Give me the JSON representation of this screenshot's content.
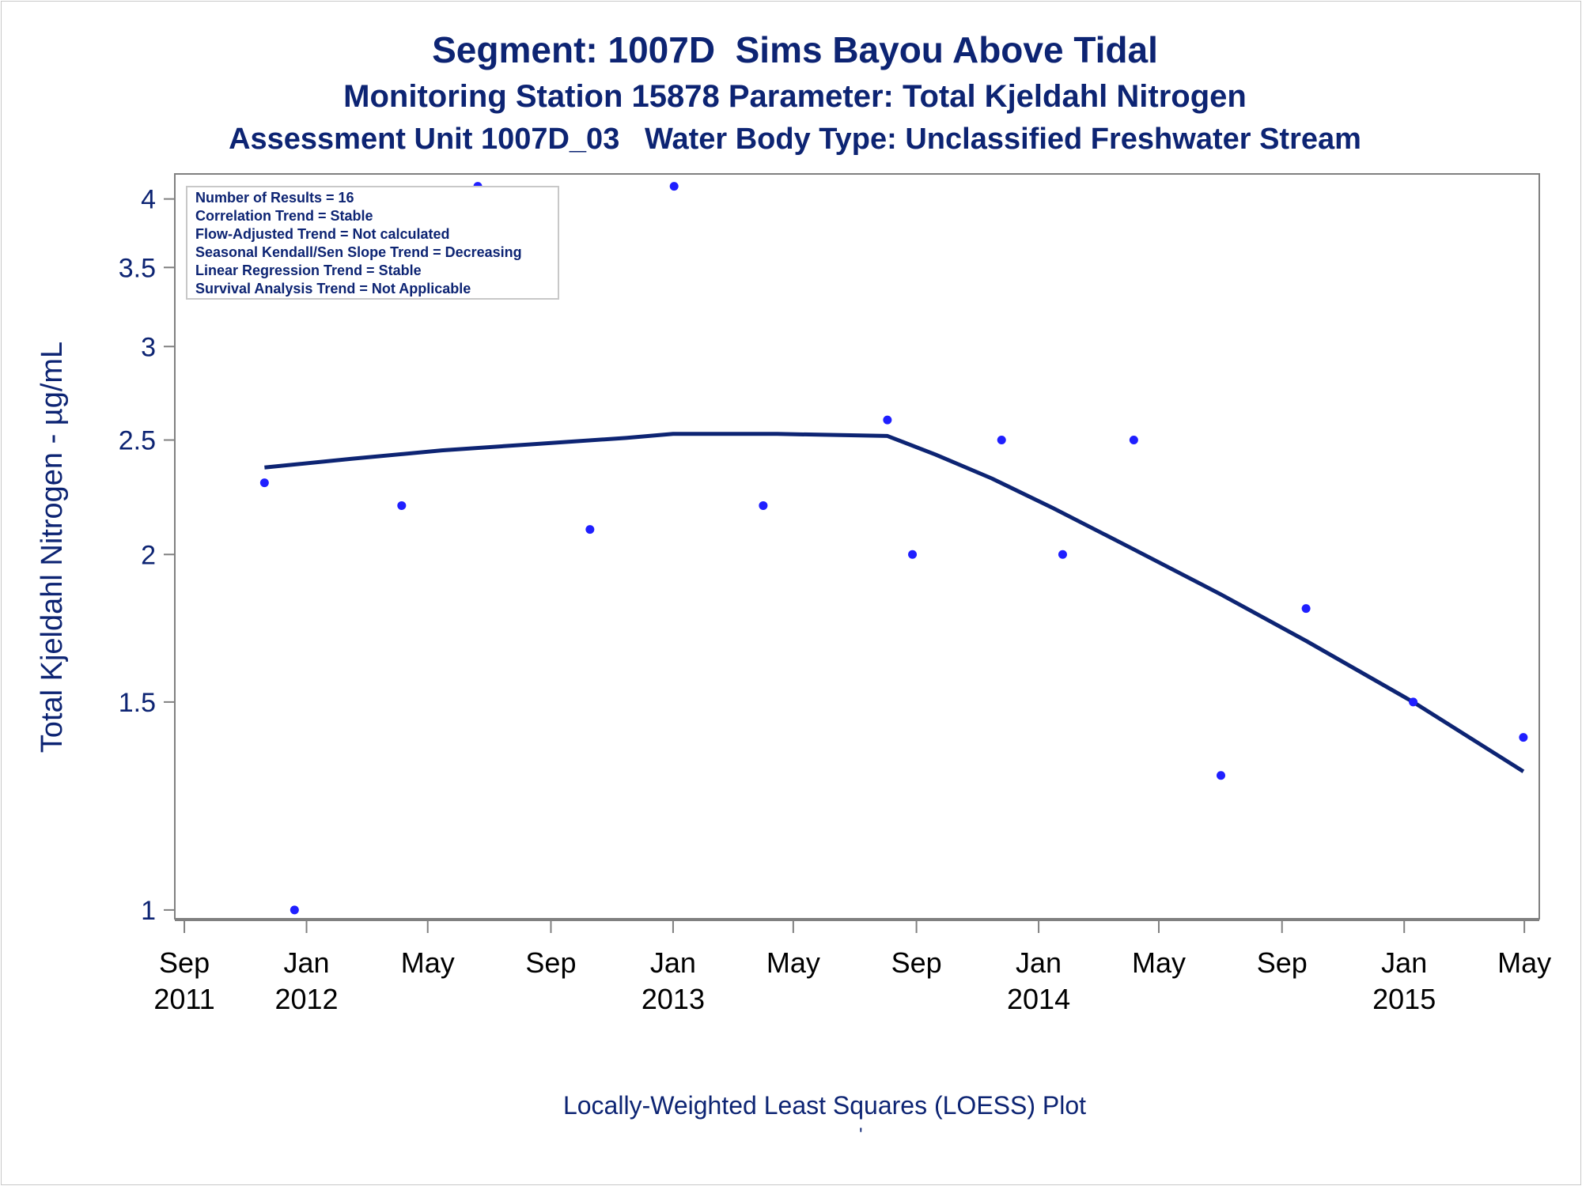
{
  "titles": {
    "line1": "Segment: 1007D  Sims Bayou Above Tidal",
    "line2": "Monitoring Station 15878 Parameter: Total Kjeldahl Nitrogen",
    "line3": "Assessment Unit 1007D_03   Water Body Type: Unclassified Freshwater Stream"
  },
  "footnote": "Locally-Weighted Least Squares (LOESS) Plot",
  "footmark": "'",
  "colors": {
    "text": "#0d2473",
    "points": "#1f1fff",
    "loess": "#0d2473",
    "axis": "#808080"
  },
  "chart_data": {
    "type": "scatter",
    "ylabel": "Total Kjeldahl Nitrogen -  µg/mL",
    "y_scale": "log",
    "ylim": [
      0.98,
      4.2
    ],
    "y_ticks": [
      1,
      1.5,
      2,
      2.5,
      3,
      3.5,
      4
    ],
    "y_tick_labels": [
      "1",
      "1.5",
      "2",
      "2.5",
      "3",
      "3.5",
      "4"
    ],
    "xlim": [
      "2011-08-28",
      "2015-05-08"
    ],
    "x_ticks": [
      {
        "date": "2011-09-01",
        "line1": "Sep",
        "line2": "2011"
      },
      {
        "date": "2012-01-01",
        "line1": "Jan",
        "line2": "2012"
      },
      {
        "date": "2012-05-01",
        "line1": "May",
        "line2": ""
      },
      {
        "date": "2012-09-01",
        "line1": "Sep",
        "line2": ""
      },
      {
        "date": "2013-01-01",
        "line1": "Jan",
        "line2": "2013"
      },
      {
        "date": "2013-05-01",
        "line1": "May",
        "line2": ""
      },
      {
        "date": "2013-09-01",
        "line1": "Sep",
        "line2": ""
      },
      {
        "date": "2014-01-01",
        "line1": "Jan",
        "line2": "2014"
      },
      {
        "date": "2014-05-01",
        "line1": "May",
        "line2": ""
      },
      {
        "date": "2014-09-01",
        "line1": "Sep",
        "line2": ""
      },
      {
        "date": "2015-01-01",
        "line1": "Jan",
        "line2": "2015"
      },
      {
        "date": "2015-05-01",
        "line1": "May",
        "line2": ""
      }
    ],
    "inset_lines": [
      "Number of Results = 16",
      "Correlation Trend = Stable",
      "Flow-Adjusted Trend = Not calculated",
      "Seasonal Kendall/Sen Slope Trend = Decreasing",
      "Linear Regression Trend = Stable",
      "Survival Analysis Trend = Not Applicable"
    ],
    "inset_position": "top-left",
    "grid": false,
    "series": [
      {
        "type": "scatter",
        "points": [
          {
            "x": "2011-11-20",
            "y": 2.3
          },
          {
            "x": "2011-12-20",
            "y": 1.0
          },
          {
            "x": "2012-04-05",
            "y": 2.2
          },
          {
            "x": "2012-06-20",
            "y": 4.1
          },
          {
            "x": "2012-10-10",
            "y": 2.1
          },
          {
            "x": "2013-01-02",
            "y": 4.1
          },
          {
            "x": "2013-04-01",
            "y": 2.2
          },
          {
            "x": "2013-08-03",
            "y": 2.6
          },
          {
            "x": "2013-08-28",
            "y": 2.0
          },
          {
            "x": "2013-11-25",
            "y": 2.5
          },
          {
            "x": "2014-01-25",
            "y": 2.0
          },
          {
            "x": "2014-04-06",
            "y": 2.5
          },
          {
            "x": "2014-07-02",
            "y": 1.3
          },
          {
            "x": "2014-09-25",
            "y": 1.8
          },
          {
            "x": "2015-01-10",
            "y": 1.5
          },
          {
            "x": "2015-04-30",
            "y": 1.4
          }
        ]
      },
      {
        "type": "line",
        "points": [
          {
            "x": "2011-11-20",
            "y": 2.37
          },
          {
            "x": "2012-02-15",
            "y": 2.41
          },
          {
            "x": "2012-05-15",
            "y": 2.45
          },
          {
            "x": "2012-08-15",
            "y": 2.48
          },
          {
            "x": "2012-11-15",
            "y": 2.51
          },
          {
            "x": "2013-01-01",
            "y": 2.53
          },
          {
            "x": "2013-04-15",
            "y": 2.53
          },
          {
            "x": "2013-08-03",
            "y": 2.52
          },
          {
            "x": "2013-09-20",
            "y": 2.43
          },
          {
            "x": "2013-11-15",
            "y": 2.32
          },
          {
            "x": "2014-01-15",
            "y": 2.19
          },
          {
            "x": "2014-04-06",
            "y": 2.02
          },
          {
            "x": "2014-07-02",
            "y": 1.85
          },
          {
            "x": "2014-09-25",
            "y": 1.69
          },
          {
            "x": "2015-01-10",
            "y": 1.5
          },
          {
            "x": "2015-04-30",
            "y": 1.31
          }
        ]
      }
    ]
  }
}
